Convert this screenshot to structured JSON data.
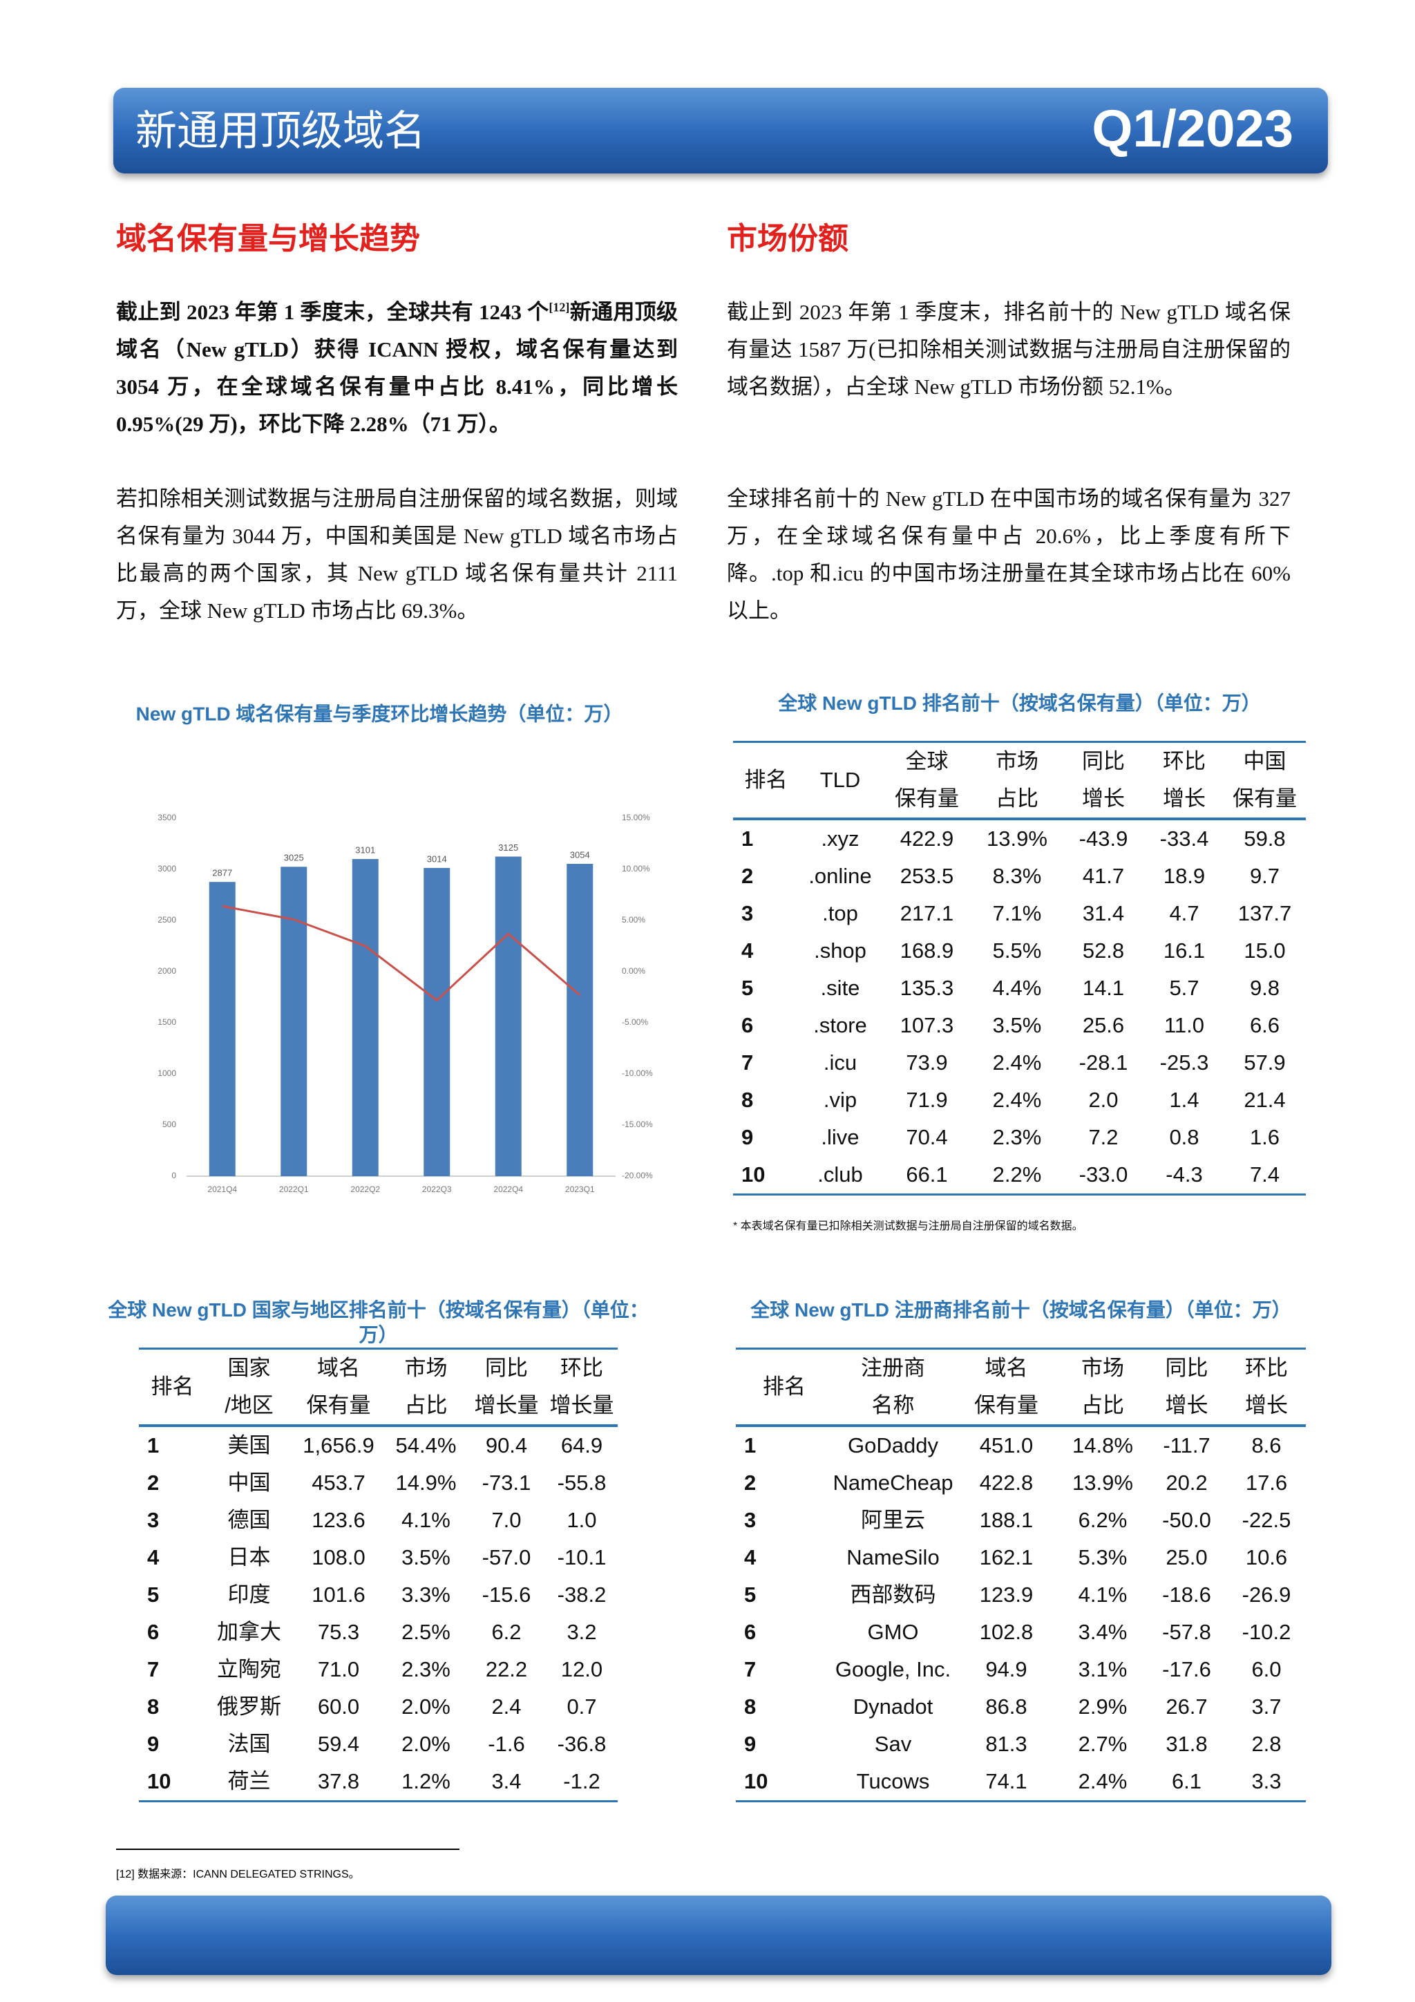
{
  "header": {
    "title": "新通用顶级域名",
    "period": "Q1/2023"
  },
  "left": {
    "heading": "域名保有量与增长趋势",
    "p1_before": "截止到 2023 年第 1 季度末，全球共有 1243 个",
    "p1_sup": "[12]",
    "p1_after": "新通用顶级域名（New gTLD）获得 ICANN 授权，域名保有量达到 3054 万，在全球域名保有量中占比 8.41%，同比增长 0.95%(29 万)，环比下降 2.28%（71 万）。",
    "p2": "若扣除相关测试数据与注册局自注册保留的域名数据，则域名保有量为 3044 万，中国和美国是 New gTLD 域名市场占比最高的两个国家，其 New gTLD 域名保有量共计 2111 万，全球 New gTLD 市场占比 69.3%。"
  },
  "right": {
    "heading": "市场份额",
    "p1": "截止到 2023 年第 1 季度末，排名前十的 New gTLD 域名保有量达 1587 万(已扣除相关测试数据与注册局自注册保留的域名数据），占全球 New gTLD 市场份额 52.1%。",
    "p2": "全球排名前十的 New gTLD 在中国市场的域名保有量为 327 万，在全球域名保有量中占 20.6%，比上季度有所下降。.top 和.icu 的中国市场注册量在其全球市场占比在 60%以上。"
  },
  "chart_data": {
    "type": "bar",
    "title": "New gTLD 域名保有量与季度环比增长趋势（单位：万）",
    "categories": [
      "2021Q4",
      "2022Q1",
      "2022Q2",
      "2022Q3",
      "2022Q4",
      "2023Q1"
    ],
    "series": [
      {
        "type": "bar",
        "color": "#4a7ebb",
        "values": [
          2877,
          3025,
          3101,
          3014,
          3125,
          3054
        ]
      },
      {
        "type": "line",
        "axis": "y2",
        "color": "#c9504b",
        "values": [
          6.4,
          5.1,
          2.5,
          -2.8,
          3.7,
          -2.3
        ]
      }
    ],
    "ylim": [
      0,
      3500
    ],
    "yticks": [
      0,
      500,
      1000,
      1500,
      2000,
      2500,
      3000,
      3500
    ],
    "y2lim": [
      -20,
      15
    ],
    "y2ticks": [
      {
        "value": -20,
        "label": "-20.00%"
      },
      {
        "value": -15,
        "label": "-15.00%"
      },
      {
        "value": -10,
        "label": "-10.00%"
      },
      {
        "value": -5,
        "label": "-5.00%"
      },
      {
        "value": 0,
        "label": "0.00%"
      },
      {
        "value": 5,
        "label": "5.00%"
      },
      {
        "value": 10,
        "label": "10.00%"
      },
      {
        "value": 15,
        "label": "15.00%"
      }
    ],
    "grid": false
  },
  "tld_table": {
    "title": "全球 New gTLD 排名前十（按域名保有量）（单位：万）",
    "header": [
      [
        "排名"
      ],
      [
        "TLD"
      ],
      [
        "全球",
        "保有量"
      ],
      [
        "市场",
        "占比"
      ],
      [
        "同比",
        "增长"
      ],
      [
        "环比",
        "增长"
      ],
      [
        "中国",
        "保有量"
      ]
    ],
    "rows": [
      [
        "1",
        ".xyz",
        "422.9",
        "13.9%",
        "-43.9",
        "-33.4",
        "59.8"
      ],
      [
        "2",
        ".online",
        "253.5",
        "8.3%",
        "41.7",
        "18.9",
        "9.7"
      ],
      [
        "3",
        ".top",
        "217.1",
        "7.1%",
        "31.4",
        "4.7",
        "137.7"
      ],
      [
        "4",
        ".shop",
        "168.9",
        "5.5%",
        "52.8",
        "16.1",
        "15.0"
      ],
      [
        "5",
        ".site",
        "135.3",
        "4.4%",
        "14.1",
        "5.7",
        "9.8"
      ],
      [
        "6",
        ".store",
        "107.3",
        "3.5%",
        "25.6",
        "11.0",
        "6.6"
      ],
      [
        "7",
        ".icu",
        "73.9",
        "2.4%",
        "-28.1",
        "-25.3",
        "57.9"
      ],
      [
        "8",
        ".vip",
        "71.9",
        "2.4%",
        "2.0",
        "1.4",
        "21.4"
      ],
      [
        "9",
        ".live",
        "70.4",
        "2.3%",
        "7.2",
        "0.8",
        "1.6"
      ],
      [
        "10",
        ".club",
        "66.1",
        "2.2%",
        "-33.0",
        "-4.3",
        "7.4"
      ]
    ],
    "note": "* 本表域名保有量已扣除相关测试数据与注册局自注册保留的域名数据。"
  },
  "country_table": {
    "title": "全球 New gTLD 国家与地区排名前十（按域名保有量）（单位：万）",
    "header": [
      [
        "排名"
      ],
      [
        "国家",
        "/地区"
      ],
      [
        "域名",
        "保有量"
      ],
      [
        "市场",
        "占比"
      ],
      [
        "同比",
        "增长量"
      ],
      [
        "环比",
        "增长量"
      ]
    ],
    "rows": [
      [
        "1",
        "美国",
        "1,656.9",
        "54.4%",
        "90.4",
        "64.9"
      ],
      [
        "2",
        "中国",
        "453.7",
        "14.9%",
        "-73.1",
        "-55.8"
      ],
      [
        "3",
        "德国",
        "123.6",
        "4.1%",
        "7.0",
        "1.0"
      ],
      [
        "4",
        "日本",
        "108.0",
        "3.5%",
        "-57.0",
        "-10.1"
      ],
      [
        "5",
        "印度",
        "101.6",
        "3.3%",
        "-15.6",
        "-38.2"
      ],
      [
        "6",
        "加拿大",
        "75.3",
        "2.5%",
        "6.2",
        "3.2"
      ],
      [
        "7",
        "立陶宛",
        "71.0",
        "2.3%",
        "22.2",
        "12.0"
      ],
      [
        "8",
        "俄罗斯",
        "60.0",
        "2.0%",
        "2.4",
        "0.7"
      ],
      [
        "9",
        "法国",
        "59.4",
        "2.0%",
        "-1.6",
        "-36.8"
      ],
      [
        "10",
        "荷兰",
        "37.8",
        "1.2%",
        "3.4",
        "-1.2"
      ]
    ]
  },
  "registrar_table": {
    "title": "全球 New gTLD 注册商排名前十（按域名保有量）（单位：万）",
    "header": [
      [
        "排名"
      ],
      [
        "注册商",
        "名称"
      ],
      [
        "域名",
        "保有量"
      ],
      [
        "市场",
        "占比"
      ],
      [
        "同比",
        "增长"
      ],
      [
        "环比",
        "增长"
      ]
    ],
    "rows": [
      [
        "1",
        "GoDaddy",
        "451.0",
        "14.8%",
        "-11.7",
        "8.6"
      ],
      [
        "2",
        "NameCheap",
        "422.8",
        "13.9%",
        "20.2",
        "17.6"
      ],
      [
        "3",
        "阿里云",
        "188.1",
        "6.2%",
        "-50.0",
        "-22.5"
      ],
      [
        "4",
        "NameSilo",
        "162.1",
        "5.3%",
        "25.0",
        "10.6"
      ],
      [
        "5",
        "西部数码",
        "123.9",
        "4.1%",
        "-18.6",
        "-26.9"
      ],
      [
        "6",
        "GMO",
        "102.8",
        "3.4%",
        "-57.8",
        "-10.2"
      ],
      [
        "7",
        "Google, Inc.",
        "94.9",
        "3.1%",
        "-17.6",
        "6.0"
      ],
      [
        "8",
        "Dynadot",
        "86.8",
        "2.9%",
        "26.7",
        "3.7"
      ],
      [
        "9",
        "Sav",
        "81.3",
        "2.7%",
        "31.8",
        "2.8"
      ],
      [
        "10",
        "Tucows",
        "74.1",
        "2.4%",
        "6.1",
        "3.3"
      ]
    ]
  },
  "footnote": "[12] 数据来源：ICANN DELEGATED STRINGS。"
}
